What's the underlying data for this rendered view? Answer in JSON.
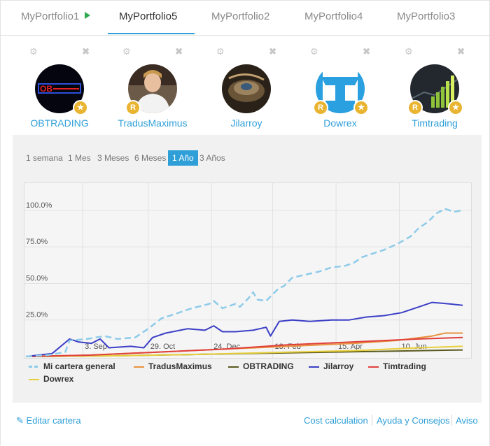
{
  "tabs": [
    {
      "label": "MyPortfolio1",
      "active": false
    },
    {
      "label": "MyPortfolio5",
      "active": true
    },
    {
      "label": "MyPortfolio2",
      "active": false
    },
    {
      "label": "MyPortfolio4",
      "active": false
    },
    {
      "label": "MyPortfolio3",
      "active": false
    }
  ],
  "members": [
    {
      "name": "OBTRADING",
      "avatar_text": "OB",
      "badges": [
        "star"
      ]
    },
    {
      "name": "TradusMaximus",
      "badges": [
        "R"
      ]
    },
    {
      "name": "Jilarroy",
      "badges": []
    },
    {
      "name": "Dowrex",
      "badges": [
        "R",
        "star"
      ]
    },
    {
      "name": "Timtrading",
      "badges": [
        "R",
        "star"
      ]
    }
  ],
  "badge_labels": {
    "r": "R",
    "star": "★"
  },
  "ranges": [
    "1 semana",
    "1 Mes",
    "3 Meses",
    "6 Meses",
    "1 Año",
    "3 Años"
  ],
  "active_range": "1 Año",
  "colors": {
    "accent": "#2f9fd8",
    "play": "#2ea84a",
    "badge": "#e9b430"
  },
  "chart_data": {
    "type": "line",
    "x_ticks": [
      "3. Sep",
      "29. Oct",
      "24. Dec",
      "18. Feb",
      "15. Apr",
      "10. Jun"
    ],
    "y_ticks": [
      "25.0%",
      "50.0%",
      "75.0%",
      "100.0%"
    ],
    "ylim": [
      0,
      110
    ],
    "xlim": [
      0,
      1
    ],
    "grid": true,
    "legend_position": "bottom",
    "series": [
      {
        "name": "Mi cartera general",
        "color": "#8ecbea",
        "dashed": true,
        "points": [
          [
            0,
            0
          ],
          [
            0.05,
            1
          ],
          [
            0.09,
            3
          ],
          [
            0.1,
            11
          ],
          [
            0.14,
            12
          ],
          [
            0.18,
            14
          ],
          [
            0.21,
            12
          ],
          [
            0.25,
            13
          ],
          [
            0.28,
            19
          ],
          [
            0.31,
            26
          ],
          [
            0.35,
            30
          ],
          [
            0.38,
            33
          ],
          [
            0.42,
            36
          ],
          [
            0.43,
            38
          ],
          [
            0.45,
            33
          ],
          [
            0.48,
            36
          ],
          [
            0.49,
            34
          ],
          [
            0.51,
            40
          ],
          [
            0.52,
            44
          ],
          [
            0.53,
            39
          ],
          [
            0.55,
            38
          ],
          [
            0.56,
            41
          ],
          [
            0.58,
            47
          ],
          [
            0.59,
            48
          ],
          [
            0.61,
            54
          ],
          [
            0.64,
            56
          ],
          [
            0.67,
            58
          ],
          [
            0.7,
            61
          ],
          [
            0.73,
            62
          ],
          [
            0.75,
            64
          ],
          [
            0.77,
            68
          ],
          [
            0.8,
            71
          ],
          [
            0.82,
            73
          ],
          [
            0.85,
            77
          ],
          [
            0.88,
            82
          ],
          [
            0.9,
            88
          ],
          [
            0.92,
            92
          ],
          [
            0.94,
            98
          ],
          [
            0.96,
            101
          ],
          [
            0.98,
            99
          ],
          [
            1.0,
            100
          ]
        ]
      },
      {
        "name": "TradusMaximus",
        "color": "#e8923e",
        "dashed": false,
        "points": [
          [
            0,
            0
          ],
          [
            0.15,
            1
          ],
          [
            0.3,
            3
          ],
          [
            0.45,
            5
          ],
          [
            0.6,
            7
          ],
          [
            0.75,
            9
          ],
          [
            0.85,
            11
          ],
          [
            0.93,
            14
          ],
          [
            0.96,
            16
          ],
          [
            1.0,
            16
          ]
        ]
      },
      {
        "name": "OBTRADING",
        "color": "#5a5a20",
        "dashed": false,
        "points": [
          [
            0,
            0
          ],
          [
            0.2,
            0.5
          ],
          [
            0.4,
            1.5
          ],
          [
            0.6,
            2.5
          ],
          [
            0.8,
            3.5
          ],
          [
            1.0,
            4.5
          ]
        ]
      },
      {
        "name": "Jilarroy",
        "color": "#3b3fc6",
        "dashed": false,
        "points": [
          [
            0,
            0
          ],
          [
            0.06,
            2
          ],
          [
            0.1,
            12
          ],
          [
            0.12,
            10
          ],
          [
            0.15,
            9
          ],
          [
            0.17,
            12
          ],
          [
            0.19,
            6
          ],
          [
            0.24,
            7
          ],
          [
            0.27,
            6
          ],
          [
            0.29,
            13
          ],
          [
            0.32,
            16
          ],
          [
            0.37,
            19
          ],
          [
            0.41,
            18
          ],
          [
            0.43,
            21
          ],
          [
            0.45,
            17
          ],
          [
            0.48,
            17
          ],
          [
            0.52,
            18
          ],
          [
            0.55,
            20
          ],
          [
            0.56,
            14
          ],
          [
            0.58,
            24
          ],
          [
            0.61,
            25
          ],
          [
            0.65,
            24
          ],
          [
            0.7,
            25
          ],
          [
            0.74,
            25
          ],
          [
            0.78,
            27
          ],
          [
            0.82,
            28
          ],
          [
            0.86,
            30
          ],
          [
            0.9,
            34
          ],
          [
            0.93,
            37
          ],
          [
            0.97,
            36
          ],
          [
            1.0,
            35
          ]
        ]
      },
      {
        "name": "Timtrading",
        "color": "#e0403c",
        "dashed": false,
        "points": [
          [
            0,
            0
          ],
          [
            0.15,
            1
          ],
          [
            0.3,
            3
          ],
          [
            0.45,
            5
          ],
          [
            0.6,
            8
          ],
          [
            0.75,
            10
          ],
          [
            0.9,
            12
          ],
          [
            1.0,
            13
          ]
        ]
      },
      {
        "name": "Dowrex",
        "color": "#e8cf3a",
        "dashed": false,
        "points": [
          [
            0,
            0
          ],
          [
            0.2,
            0.5
          ],
          [
            0.4,
            1.5
          ],
          [
            0.6,
            3
          ],
          [
            0.75,
            4
          ],
          [
            0.9,
            6
          ],
          [
            1.0,
            7
          ]
        ]
      }
    ]
  },
  "footer": {
    "edit_icon": "pencil-icon",
    "edit_label": "Editar cartera",
    "cost_label": "Cost calculation",
    "help_label": "Ayuda y Consejos",
    "notice_label": "Aviso"
  }
}
